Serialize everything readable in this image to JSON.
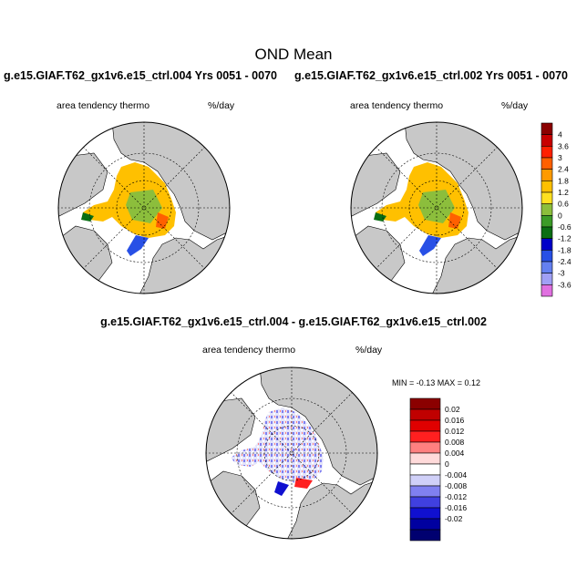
{
  "title": "OND Mean",
  "panels": [
    {
      "case_label": "g.e15.GIAF.T62_gx1v6.e15_ctrl.004  Yrs 0051 - 0070",
      "variable": "area tendency thermo",
      "units": "%/day"
    },
    {
      "case_label": "g.e15.GIAF.T62_gx1v6.e15_ctrl.002  Yrs 0051 - 0070",
      "variable": "area tendency thermo",
      "units": "%/day"
    },
    {
      "case_label": "g.e15.GIAF.T62_gx1v6.e15_ctrl.004 - g.e15.GIAF.T62_gx1v6.e15_ctrl.002",
      "variable": "area tendency thermo",
      "units": "%/day",
      "minmax": "MIN =  -0.13 MAX =   0.12"
    }
  ],
  "colorbar_top": {
    "labels": [
      "4",
      "3.6",
      "3",
      "2.4",
      "1.8",
      "1.2",
      "0.6",
      "0",
      "-0.6",
      "-1.2",
      "-1.8",
      "-2.4",
      "-3",
      "-3.6"
    ],
    "colors": [
      "#8b0000",
      "#c80000",
      "#ff2000",
      "#ff6000",
      "#ff9a00",
      "#ffc000",
      "#ffe020",
      "#8cbe3c",
      "#3c9b28",
      "#0a6e14",
      "#0000c8",
      "#2850e6",
      "#6480f0",
      "#a0a0f5",
      "#e070e0"
    ]
  },
  "colorbar_diff": {
    "labels": [
      "0.02",
      "0.016",
      "0.012",
      "0.008",
      "0.004",
      "0",
      "-0.004",
      "-0.008",
      "-0.012",
      "-0.016",
      "-0.02"
    ],
    "colors": [
      "#8b0000",
      "#c00000",
      "#e00000",
      "#ff2020",
      "#ff8080",
      "#ffdada",
      "#ffffff",
      "#d0d0f8",
      "#8080f0",
      "#4040e0",
      "#1010d0",
      "#0000a0",
      "#000070"
    ]
  },
  "map_colors": {
    "ocean": "#ffffff",
    "land": "#c8c8c8"
  }
}
